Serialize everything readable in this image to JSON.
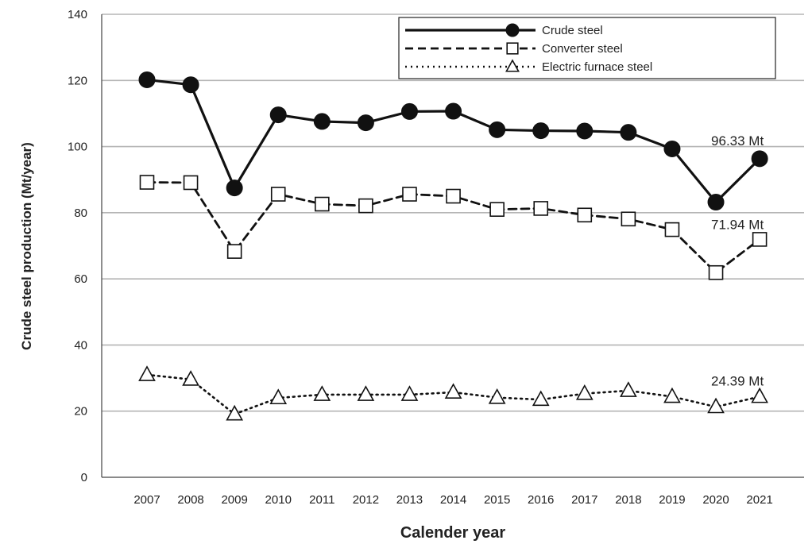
{
  "chart_data": {
    "type": "line",
    "xlabel": "Calender year",
    "ylabel": "Crude steel production (Mt/year)",
    "ylim": [
      0,
      140
    ],
    "yticks": [
      0,
      20,
      40,
      60,
      80,
      100,
      120,
      140
    ],
    "grid": true,
    "legend_position": "top-right",
    "categories": [
      "2007",
      "2008",
      "2009",
      "2010",
      "2011",
      "2012",
      "2013",
      "2014",
      "2015",
      "2016",
      "2017",
      "2018",
      "2019",
      "2020",
      "2021"
    ],
    "series": [
      {
        "name": "Crude steel",
        "marker": "filled-circle",
        "line_style": "solid",
        "color": "#111111",
        "values": [
          120.2,
          118.7,
          87.5,
          109.6,
          107.6,
          107.2,
          110.6,
          110.7,
          105.1,
          104.8,
          104.7,
          104.3,
          99.3,
          83.2,
          96.33
        ]
      },
      {
        "name": "Converter steel",
        "marker": "open-square",
        "line_style": "dashed",
        "color": "#111111",
        "values": [
          89.2,
          89.1,
          68.3,
          85.6,
          82.6,
          82.1,
          85.6,
          85.0,
          81.0,
          81.3,
          79.3,
          78.1,
          74.9,
          61.9,
          71.94
        ]
      },
      {
        "name": "Electric furnace steel",
        "marker": "open-triangle",
        "line_style": "dotted",
        "color": "#111111",
        "values": [
          31.0,
          29.6,
          19.1,
          24.0,
          25.0,
          25.0,
          25.0,
          25.7,
          24.1,
          23.5,
          25.3,
          26.2,
          24.4,
          21.3,
          24.39
        ]
      }
    ],
    "annotations": [
      {
        "text": "96.33 Mt",
        "series": "Crude steel",
        "category": "2021"
      },
      {
        "text": "71.94 Mt",
        "series": "Converter steel",
        "category": "2021"
      },
      {
        "text": "24.39 Mt",
        "series": "Electric furnace steel",
        "category": "2021"
      }
    ]
  }
}
